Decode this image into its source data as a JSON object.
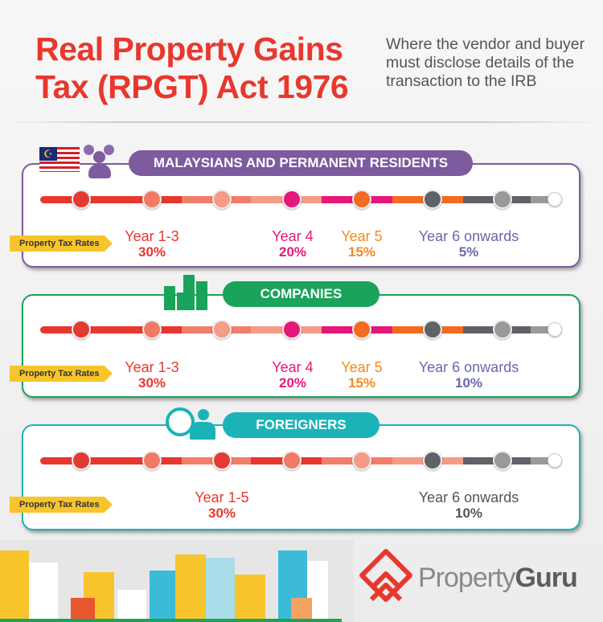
{
  "header": {
    "title_line1": "Real Property Gains",
    "title_line2": "Tax (RPGT) Act 1976",
    "subtitle": "Where the vendor and buyer must disclose details of the transaction to the IRB"
  },
  "tag_label": "Property Tax Rates",
  "sections": [
    {
      "title": "MALAYSIANS AND PERMANENT RESIDENTS",
      "color": "#7e5a9f",
      "icon": "malaysia-flag-people-icon",
      "rates": [
        {
          "period": "Year 1-3",
          "rate": "30%",
          "color": "#e8382e"
        },
        {
          "period": "Year 4",
          "rate": "20%",
          "color": "#e5177b"
        },
        {
          "period": "Year 5",
          "rate": "15%",
          "color": "#f48a1e"
        },
        {
          "period": "Year 6 onwards",
          "rate": "5%",
          "color": "#6a68ac"
        }
      ]
    },
    {
      "title": "COMPANIES",
      "color": "#1aa35a",
      "icon": "buildings-icon",
      "rates": [
        {
          "period": "Year 1-3",
          "rate": "30%",
          "color": "#e8382e"
        },
        {
          "period": "Year 4",
          "rate": "20%",
          "color": "#e5177b"
        },
        {
          "period": "Year 5",
          "rate": "15%",
          "color": "#f48a1e"
        },
        {
          "period": "Year 6 onwards",
          "rate": "10%",
          "color": "#6a68ac"
        }
      ]
    },
    {
      "title": "FOREIGNERS",
      "color": "#1bb3b8",
      "icon": "globe-person-icon",
      "rates": [
        {
          "period": "Year 1-5",
          "rate": "30%",
          "color": "#e8382e"
        },
        {
          "period": "Year 6 onwards",
          "rate": "10%",
          "color": "#555555"
        }
      ]
    }
  ],
  "brand": {
    "name_part1": "Property",
    "name_part2": "Guru",
    "color": "#e8382e"
  }
}
